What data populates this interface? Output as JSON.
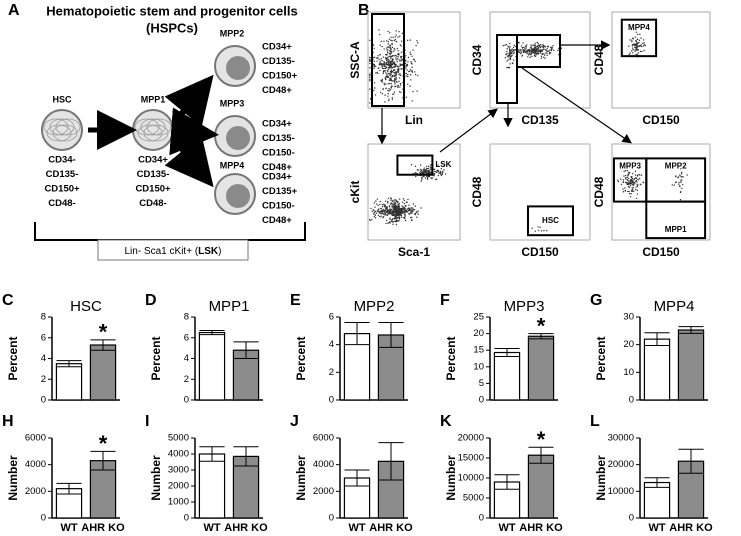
{
  "panel_a": {
    "label": "A",
    "title": [
      "Hematopoietic stem and progenitor cells",
      "(HSPCs)"
    ],
    "cells": [
      {
        "name": "HSC",
        "markers": [
          "CD34-",
          "CD135-",
          "CD150+",
          "CD48-"
        ]
      },
      {
        "name": "MPP1",
        "markers": [
          "CD34+",
          "CD135-",
          "CD150+",
          "CD48-"
        ]
      },
      {
        "name": "MPP2",
        "markers": [
          "CD34+",
          "CD135-",
          "CD150+",
          "CD48+"
        ]
      },
      {
        "name": "MPP3",
        "markers": [
          "CD34+",
          "CD135-",
          "CD150-",
          "CD48+"
        ]
      },
      {
        "name": "MPP4",
        "markers": [
          "CD34+",
          "CD135+",
          "CD150-",
          "CD48+"
        ]
      }
    ],
    "gate_label": [
      "Lin- Sca1 cKit+ (",
      "LSK",
      ")"
    ]
  },
  "panel_b": {
    "label": "B",
    "plots": [
      {
        "ylabel": "SSC-A",
        "xlabel": "Lin",
        "gates": []
      },
      {
        "ylabel": "CD34",
        "xlabel": "CD135",
        "gates": []
      },
      {
        "ylabel": "CD48",
        "xlabel": "CD150",
        "gates": [
          "MPP4"
        ]
      },
      {
        "ylabel": "cKit",
        "xlabel": "Sca-1",
        "gates": [
          "LSK"
        ]
      },
      {
        "ylabel": "CD48",
        "xlabel": "CD150",
        "gates": [
          "HSC"
        ]
      },
      {
        "ylabel": "CD48",
        "xlabel": "CD150",
        "gates": [
          "MPP3",
          "MPP2",
          "MPP1"
        ]
      }
    ]
  },
  "chart_data": [
    {
      "type": "bar",
      "panel": "C",
      "title": "HSC",
      "ylabel": "Percent",
      "categories": [
        null,
        null
      ],
      "values": [
        3.5,
        5.3
      ],
      "errors": [
        0.3,
        0.5
      ],
      "colors": [
        "#ffffff",
        "#8c8c8c"
      ],
      "significant": [
        false,
        true
      ],
      "annotation": "*",
      "ylim": [
        0,
        8
      ],
      "yticks": [
        0,
        2,
        4,
        6,
        8
      ]
    },
    {
      "type": "bar",
      "panel": "D",
      "title": "MPP1",
      "ylabel": "Percent",
      "categories": [
        null,
        null
      ],
      "values": [
        6.5,
        4.8
      ],
      "errors": [
        0.2,
        0.8
      ],
      "colors": [
        "#ffffff",
        "#8c8c8c"
      ],
      "ylim": [
        0,
        8
      ],
      "yticks": [
        0,
        2,
        4,
        6,
        8
      ]
    },
    {
      "type": "bar",
      "panel": "E",
      "title": "MPP2",
      "ylabel": "Percent",
      "categories": [
        null,
        null
      ],
      "values": [
        4.8,
        4.7
      ],
      "errors": [
        0.8,
        0.9
      ],
      "colors": [
        "#ffffff",
        "#8c8c8c"
      ],
      "ylim": [
        0,
        6
      ],
      "yticks": [
        0,
        2,
        4,
        6
      ]
    },
    {
      "type": "bar",
      "panel": "F",
      "title": "MPP3",
      "ylabel": "Percent",
      "categories": [
        null,
        null
      ],
      "values": [
        14.3,
        19.2
      ],
      "errors": [
        1.2,
        0.8
      ],
      "colors": [
        "#ffffff",
        "#8c8c8c"
      ],
      "significant": [
        false,
        true
      ],
      "annotation": "*",
      "ylim": [
        0,
        25
      ],
      "yticks": [
        0,
        5,
        10,
        15,
        20,
        25
      ]
    },
    {
      "type": "bar",
      "panel": "G",
      "title": "MPP4",
      "ylabel": "Percent",
      "categories": [
        null,
        null
      ],
      "values": [
        22,
        25.3
      ],
      "errors": [
        2.3,
        1.2
      ],
      "colors": [
        "#ffffff",
        "#8c8c8c"
      ],
      "ylim": [
        0,
        30
      ],
      "yticks": [
        0,
        10,
        20,
        30
      ]
    },
    {
      "type": "bar",
      "panel": "H",
      "ylabel": "Number",
      "categories": [
        "WT",
        "AHR KO"
      ],
      "values": [
        2200,
        4300
      ],
      "errors": [
        400,
        700
      ],
      "colors": [
        "#ffffff",
        "#8c8c8c"
      ],
      "significant": [
        false,
        true
      ],
      "annotation": "*",
      "ylim": [
        0,
        6000
      ],
      "yticks": [
        0,
        2000,
        4000,
        6000
      ]
    },
    {
      "type": "bar",
      "panel": "I",
      "ylabel": "Number",
      "categories": [
        "WT",
        "AHR KO"
      ],
      "values": [
        4000,
        3850
      ],
      "errors": [
        450,
        600
      ],
      "colors": [
        "#ffffff",
        "#8c8c8c"
      ],
      "ylim": [
        0,
        5000
      ],
      "yticks": [
        0,
        1000,
        2000,
        3000,
        4000,
        5000
      ]
    },
    {
      "type": "bar",
      "panel": "J",
      "ylabel": "Number",
      "categories": [
        "WT",
        "AHR KO"
      ],
      "values": [
        3000,
        4250
      ],
      "errors": [
        600,
        1400
      ],
      "colors": [
        "#ffffff",
        "#8c8c8c"
      ],
      "ylim": [
        0,
        6000
      ],
      "yticks": [
        0,
        2000,
        4000,
        6000
      ]
    },
    {
      "type": "bar",
      "panel": "K",
      "ylabel": "Number",
      "categories": [
        "WT",
        "AHR KO"
      ],
      "values": [
        9000,
        15700
      ],
      "errors": [
        1800,
        2000
      ],
      "colors": [
        "#ffffff",
        "#8c8c8c"
      ],
      "significant": [
        false,
        true
      ],
      "annotation": "*",
      "ylim": [
        0,
        20000
      ],
      "yticks": [
        0,
        5000,
        10000,
        15000,
        20000
      ]
    },
    {
      "type": "bar",
      "panel": "L",
      "ylabel": "Number",
      "categories": [
        "WT",
        "AHR KO"
      ],
      "values": [
        13300,
        21300
      ],
      "errors": [
        1800,
        4500
      ],
      "colors": [
        "#ffffff",
        "#8c8c8c"
      ],
      "ylim": [
        0,
        30000
      ],
      "yticks": [
        0,
        10000,
        20000,
        30000
      ]
    }
  ]
}
